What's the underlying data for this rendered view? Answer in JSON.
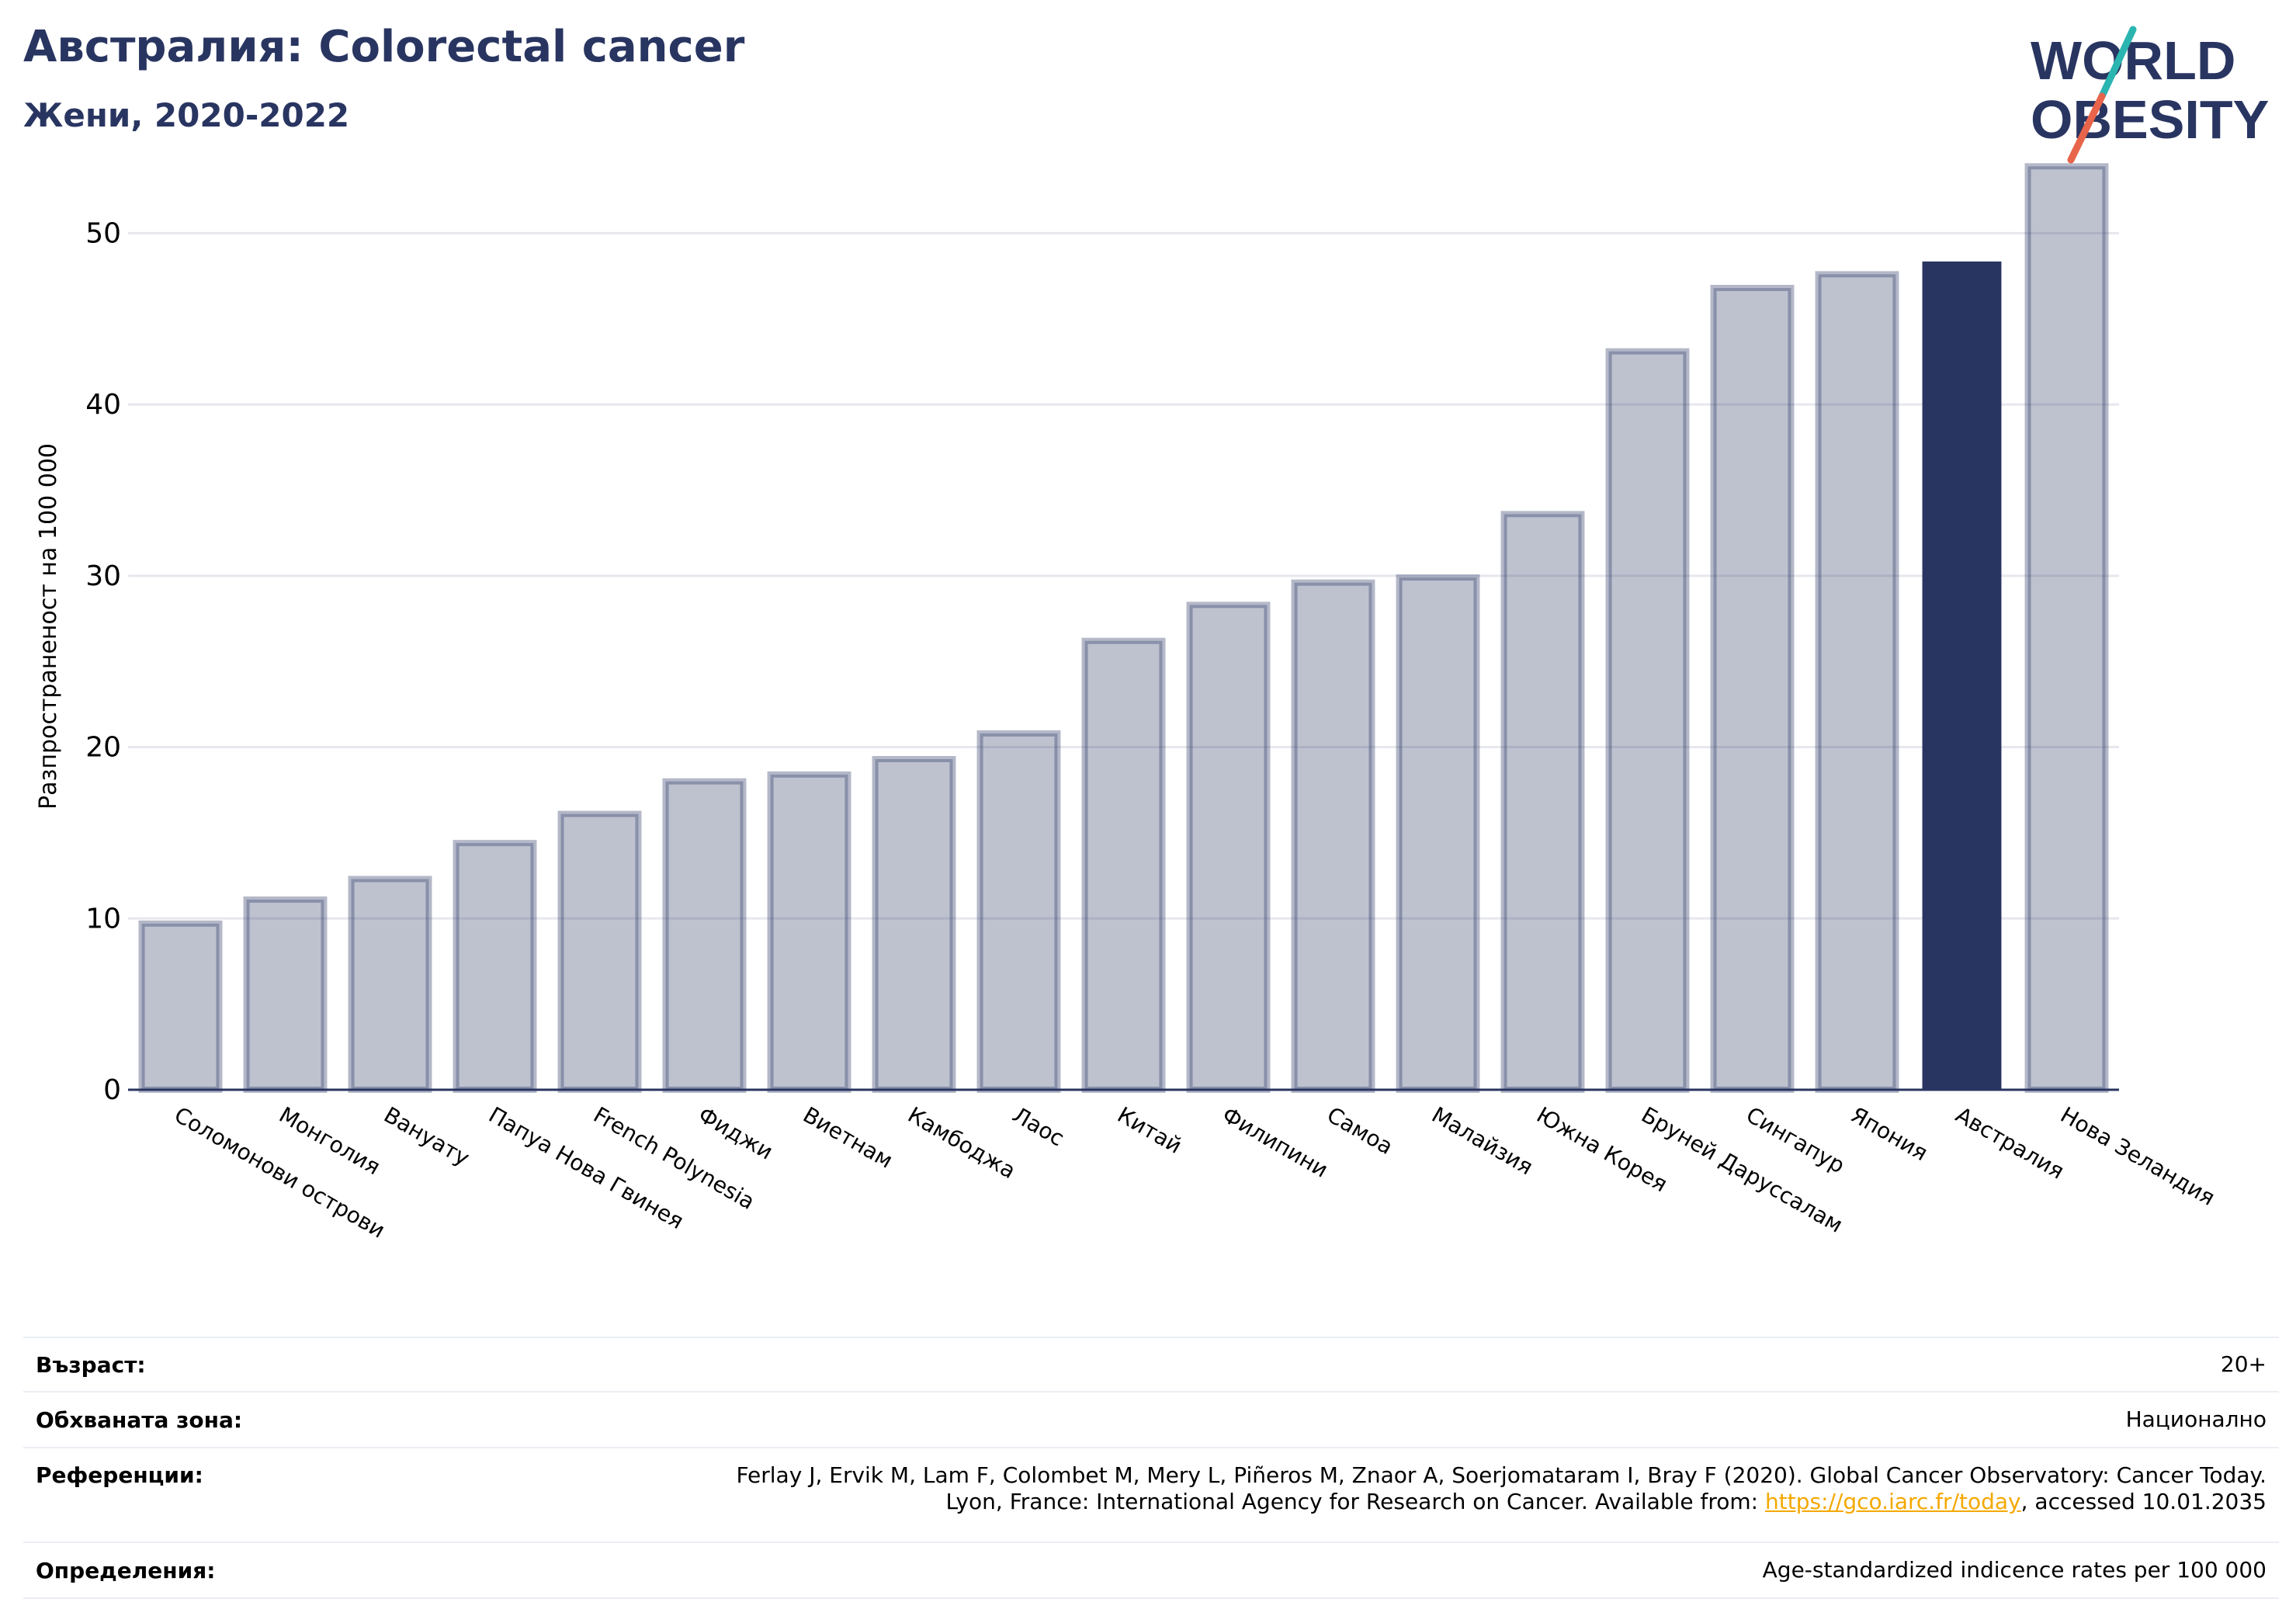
{
  "header": {
    "title": "Австралия: Colorectal cancer",
    "subtitle": "Жени, 2020-2022"
  },
  "logo": {
    "line1": "WORLD",
    "line2": "OBESITY",
    "colors": {
      "text": "#293561",
      "slash_top": "#2bb5b0",
      "slash_bottom": "#e8644a"
    }
  },
  "chart_data": {
    "type": "bar",
    "title": "",
    "xlabel": "",
    "ylabel": "Разпространеност  на 100 000",
    "ylim": [
      0,
      55
    ],
    "yticks": [
      0,
      10,
      20,
      30,
      40,
      50
    ],
    "grid": true,
    "highlight": "Австралия",
    "colors": {
      "bar": "#293561",
      "bar_fill_opacity": 0.3,
      "highlight": "#293561",
      "grid": "#e6e8ee",
      "axis": "#293561"
    },
    "categories": [
      "Соломонови острови",
      "Монголия",
      "Вануату",
      "Папуа Нова Гвинея",
      "French Polynesia",
      "Фиджи",
      "Виетнам",
      "Камбоджа",
      "Лаос",
      "Китай",
      "Филипини",
      "Самоа",
      "Малайзия",
      "Южна Корея",
      "Бруней Даруссалам",
      "Сингапур",
      "Япония",
      "Австралия",
      "Нова Зеландия"
    ],
    "values": [
      9.7,
      11.1,
      12.3,
      14.4,
      16.1,
      18.0,
      18.4,
      19.3,
      20.8,
      26.2,
      28.3,
      29.6,
      29.9,
      33.6,
      43.1,
      46.8,
      47.6,
      48.3,
      53.9
    ]
  },
  "info": {
    "age": {
      "label": "Възраст:",
      "value": "20+"
    },
    "coverage": {
      "label": "Обхваната зона:",
      "value": "Национално"
    },
    "references": {
      "label": "Референции:",
      "line1": "Ferlay J, Ervik M, Lam F, Colombet M, Mery L, Piñeros M, Znaor A, Soerjomataram I, Bray F (2020). Global Cancer Observatory: Cancer Today.",
      "line2_prefix": "Lyon, France: International Agency for Research on Cancer. Available from: ",
      "link": "https://gco.iarc.fr/today",
      "line2_suffix": ", accessed 10.01.2035"
    },
    "definitions": {
      "label": "Определения:",
      "value": "Age-standardized indicence rates per 100 000"
    }
  }
}
